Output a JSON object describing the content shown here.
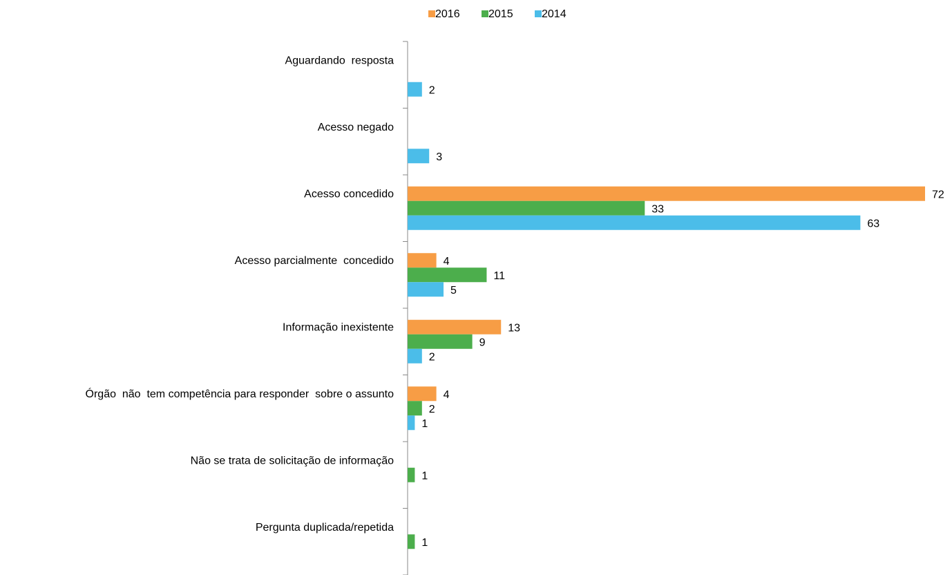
{
  "chart_data": {
    "type": "hbar",
    "categories": [
      "Aguardando  resposta",
      "Acesso negado",
      "Acesso concedido",
      "Acesso parcialmente  concedido",
      "Informação inexistente",
      "Órgão  não  tem competência para responder  sobre o assunto",
      "Não se trata de solicitação de informação",
      "Pergunta duplicada/repetida"
    ],
    "series": [
      {
        "name": "2016",
        "color": "#f79d45",
        "values": [
          null,
          null,
          72,
          4,
          13,
          4,
          null,
          null
        ]
      },
      {
        "name": "2015",
        "color": "#4cae4c",
        "values": [
          null,
          null,
          33,
          11,
          9,
          2,
          1,
          1
        ]
      },
      {
        "name": "2014",
        "color": "#4bbde9",
        "values": [
          2,
          3,
          63,
          5,
          2,
          1,
          null,
          null
        ]
      }
    ],
    "legend": "top"
  }
}
